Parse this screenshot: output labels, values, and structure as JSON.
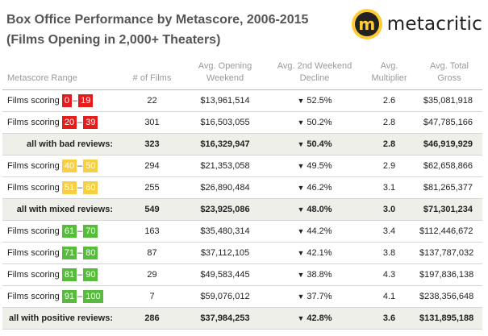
{
  "header": {
    "title": "Box Office Performance by Metascore, 2006-2015",
    "subtitle": "(Films Opening in 2,000+ Theaters)",
    "logo_glyph": "m",
    "logo_text": "metacritic"
  },
  "columns": [
    "Metascore Range",
    "# of Films",
    "Avg. Opening Weekend",
    "Avg. 2nd Weekend Decline",
    "Avg. Multiplier",
    "Avg. Total Gross"
  ],
  "row_prefix": "Films scoring",
  "range_dash": "–",
  "decline_arrow": "▼",
  "colors": {
    "red": "#e61b1b",
    "yellow": "#f8cf43",
    "green": "#57bb3b",
    "summary_bg": "#efefea"
  },
  "rows": [
    {
      "type": "range",
      "color": "red",
      "low": "0",
      "high": "19",
      "films": "22",
      "opening": "$13,961,514",
      "decline": "52.5%",
      "multiplier": "2.6",
      "gross": "$35,081,918"
    },
    {
      "type": "range",
      "color": "red",
      "low": "20",
      "high": "39",
      "films": "301",
      "opening": "$16,503,055",
      "decline": "50.2%",
      "multiplier": "2.8",
      "gross": "$47,785,166"
    },
    {
      "type": "summary",
      "label": "all with bad reviews:",
      "films": "323",
      "opening": "$16,329,947",
      "decline": "50.4%",
      "multiplier": "2.8",
      "gross": "$46,919,929"
    },
    {
      "type": "range",
      "color": "yellow",
      "low": "40",
      "high": "50",
      "films": "294",
      "opening": "$21,353,058",
      "decline": "49.5%",
      "multiplier": "2.9",
      "gross": "$62,658,866"
    },
    {
      "type": "range",
      "color": "yellow",
      "low": "51",
      "high": "60",
      "films": "255",
      "opening": "$26,890,484",
      "decline": "46.2%",
      "multiplier": "3.1",
      "gross": "$81,265,377"
    },
    {
      "type": "summary",
      "label": "all with mixed reviews:",
      "films": "549",
      "opening": "$23,925,086",
      "decline": "48.0%",
      "multiplier": "3.0",
      "gross": "$71,301,234"
    },
    {
      "type": "range",
      "color": "green",
      "low": "61",
      "high": "70",
      "films": "163",
      "opening": "$35,480,314",
      "decline": "44.2%",
      "multiplier": "3.4",
      "gross": "$112,446,672"
    },
    {
      "type": "range",
      "color": "green",
      "low": "71",
      "high": "80",
      "films": "87",
      "opening": "$37,112,105",
      "decline": "42.1%",
      "multiplier": "3.8",
      "gross": "$137,787,032"
    },
    {
      "type": "range",
      "color": "green",
      "low": "81",
      "high": "90",
      "films": "29",
      "opening": "$49,583,445",
      "decline": "38.8%",
      "multiplier": "4.3",
      "gross": "$197,836,138"
    },
    {
      "type": "range",
      "color": "green",
      "low": "91",
      "high": "100",
      "films": "7",
      "opening": "$59,076,012",
      "decline": "37.7%",
      "multiplier": "4.1",
      "gross": "$238,356,648"
    },
    {
      "type": "summary",
      "label": "all with positive reviews:",
      "films": "286",
      "opening": "$37,984,253",
      "decline": "42.8%",
      "multiplier": "3.6",
      "gross": "$131,895,188"
    }
  ]
}
